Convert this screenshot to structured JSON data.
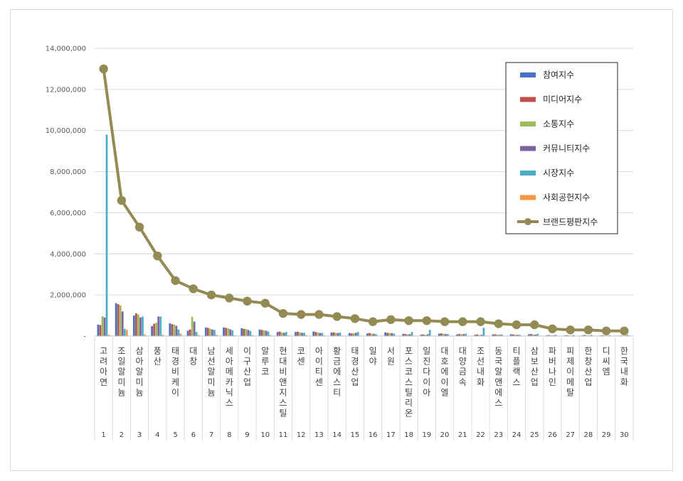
{
  "chart_data": {
    "type": "bar",
    "title": "",
    "xlabel": "",
    "ylabel": "",
    "ylim": [
      0,
      14000000
    ],
    "y_ticks": [
      "-",
      "2,000,000",
      "4,000,000",
      "6,000,000",
      "8,000,000",
      "10,000,000",
      "12,000,000",
      "14,000,000"
    ],
    "grid": true,
    "legend_position": "top-right",
    "categories": [
      "고려아연",
      "조일알미늄",
      "삼아알미늄",
      "풍산",
      "태경비케이",
      "대창",
      "남선알미늄",
      "세아메카닉스",
      "이구산업",
      "알루코",
      "현대비앤지스틸",
      "코센",
      "아이티센",
      "황금에스티",
      "태경산업",
      "일야",
      "서원",
      "포스코스틸리온",
      "일진다이아",
      "대호에이엘",
      "대양금속",
      "조선내화",
      "동국알앤에스",
      "티플랙스",
      "삼보산업",
      "파버나인",
      "피제이메탈",
      "한창산업",
      "디씨엠",
      "한국내화"
    ],
    "ranks": [
      "1",
      "2",
      "3",
      "4",
      "5",
      "6",
      "7",
      "8",
      "9",
      "10",
      "11",
      "12",
      "13",
      "14",
      "15",
      "16",
      "17",
      "18",
      "19",
      "20",
      "21",
      "22",
      "23",
      "24",
      "25",
      "26",
      "27",
      "28",
      "29",
      "30"
    ],
    "series": [
      {
        "name": "참여지수",
        "color": "#4472c4",
        "kind": "bar",
        "values": [
          560000,
          1600000,
          1000000,
          480000,
          620000,
          260000,
          420000,
          420000,
          380000,
          320000,
          200000,
          200000,
          220000,
          170000,
          150000,
          130000,
          180000,
          110000,
          70000,
          120000,
          80000,
          60000,
          80000,
          90000,
          90000,
          40000,
          30000,
          40000,
          30000,
          20000
        ]
      },
      {
        "name": "미디어지수",
        "color": "#c0504d",
        "kind": "bar",
        "values": [
          540000,
          1550000,
          1100000,
          600000,
          580000,
          320000,
          400000,
          400000,
          350000,
          300000,
          220000,
          210000,
          200000,
          180000,
          130000,
          150000,
          160000,
          100000,
          80000,
          130000,
          100000,
          80000,
          90000,
          80000,
          100000,
          50000,
          40000,
          50000,
          40000,
          30000
        ]
      },
      {
        "name": "소통지수",
        "color": "#9bbb59",
        "kind": "bar",
        "values": [
          960000,
          1500000,
          1050000,
          650000,
          560000,
          940000,
          360000,
          380000,
          340000,
          280000,
          180000,
          180000,
          180000,
          160000,
          140000,
          120000,
          150000,
          90000,
          60000,
          110000,
          90000,
          50000,
          70000,
          70000,
          80000,
          30000,
          30000,
          30000,
          20000,
          20000
        ]
      },
      {
        "name": "커뮤니티지수",
        "color": "#8064a2",
        "kind": "bar",
        "values": [
          900000,
          1200000,
          900000,
          950000,
          500000,
          700000,
          320000,
          330000,
          300000,
          260000,
          160000,
          160000,
          150000,
          150000,
          160000,
          110000,
          140000,
          90000,
          90000,
          100000,
          100000,
          60000,
          60000,
          60000,
          70000,
          30000,
          20000,
          30000,
          20000,
          20000
        ]
      },
      {
        "name": "시장지수",
        "color": "#4bacc6",
        "kind": "bar",
        "values": [
          9800000,
          350000,
          950000,
          950000,
          320000,
          200000,
          300000,
          280000,
          250000,
          220000,
          200000,
          160000,
          150000,
          170000,
          200000,
          90000,
          120000,
          200000,
          300000,
          100000,
          120000,
          400000,
          80000,
          60000,
          110000,
          60000,
          50000,
          60000,
          40000,
          60000
        ]
      },
      {
        "name": "사회공헌지수",
        "color": "#f79646",
        "kind": "bar",
        "values": [
          60000,
          300000,
          80000,
          60000,
          120000,
          50000,
          60000,
          40000,
          40000,
          50000,
          30000,
          30000,
          30000,
          20000,
          20000,
          20000,
          20000,
          20000,
          10000,
          20000,
          10000,
          20000,
          10000,
          10000,
          10000,
          10000,
          10000,
          10000,
          10000,
          10000
        ]
      },
      {
        "name": "브랜드평판지수",
        "color": "#948a54",
        "kind": "line",
        "values": [
          13000000,
          6600000,
          5300000,
          3900000,
          2700000,
          2300000,
          2000000,
          1850000,
          1700000,
          1600000,
          1100000,
          1050000,
          1050000,
          950000,
          850000,
          700000,
          800000,
          750000,
          750000,
          700000,
          700000,
          700000,
          600000,
          550000,
          550000,
          350000,
          300000,
          300000,
          250000,
          250000
        ]
      }
    ]
  }
}
